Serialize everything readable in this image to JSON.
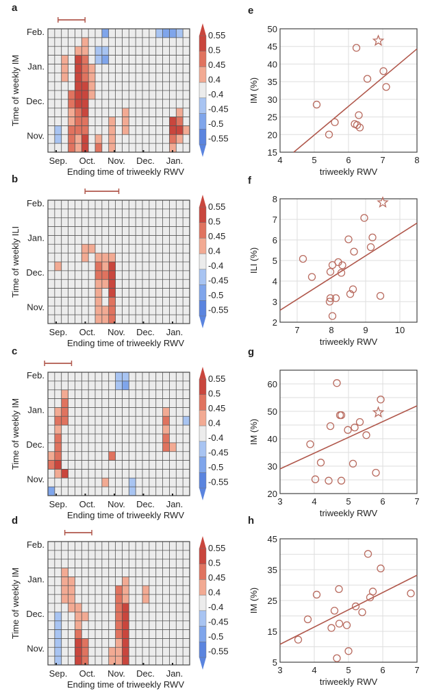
{
  "colors": {
    "pos3": "#c9463d",
    "pos2": "#e0735f",
    "pos1": "#f2aa93",
    "neutral": "#ececec",
    "neg1": "#a8c4f2",
    "neg2": "#7fa5eb",
    "neg3": "#5a84df",
    "grid": "#555555",
    "marker": "#b86a5e",
    "line": "#b0574b"
  },
  "colorbar": {
    "ticks": [
      "0.55",
      "0.5",
      "0.45",
      "0.4",
      "-0.4",
      "-0.45",
      "-0.5",
      "-0.55"
    ]
  },
  "chart_data": [
    {
      "panel": "a",
      "type": "heatmap",
      "xlabel": "Ending time of triweekly RWV",
      "ylabel": "Time of weekly IM",
      "x_ticks": [
        "Sep.",
        "Oct.",
        "Nov.",
        "Dec.",
        "Jan."
      ],
      "y_ticks": [
        "Feb.",
        "Jan.",
        "Dec.",
        "Nov."
      ],
      "n_cols": 21,
      "n_rows": 14,
      "window_bar": [
        1,
        5
      ],
      "cells": [
        [
          0,
          8,
          -0.5
        ],
        [
          0,
          16,
          -0.45
        ],
        [
          0,
          17,
          -0.5
        ],
        [
          0,
          18,
          -0.5
        ],
        [
          0,
          19,
          -0.45
        ],
        [
          1,
          5,
          0.45
        ],
        [
          2,
          4,
          0.45
        ],
        [
          2,
          5,
          0.45
        ],
        [
          2,
          7,
          -0.45
        ],
        [
          2,
          8,
          -0.45
        ],
        [
          3,
          2,
          0.45
        ],
        [
          3,
          4,
          0.55
        ],
        [
          3,
          5,
          0.5
        ],
        [
          3,
          7,
          -0.45
        ],
        [
          3,
          8,
          -0.5
        ],
        [
          4,
          2,
          0.45
        ],
        [
          4,
          4,
          0.55
        ],
        [
          4,
          5,
          0.5
        ],
        [
          4,
          6,
          0.45
        ],
        [
          5,
          2,
          0.45
        ],
        [
          5,
          4,
          0.55
        ],
        [
          5,
          5,
          0.5
        ],
        [
          5,
          6,
          0.45
        ],
        [
          6,
          4,
          0.55
        ],
        [
          6,
          5,
          0.55
        ],
        [
          6,
          6,
          0.45
        ],
        [
          7,
          3,
          0.5
        ],
        [
          7,
          4,
          0.55
        ],
        [
          7,
          5,
          0.55
        ],
        [
          7,
          6,
          0.45
        ],
        [
          8,
          3,
          0.5
        ],
        [
          8,
          4,
          0.55
        ],
        [
          8,
          5,
          0.55
        ],
        [
          9,
          3,
          0.45
        ],
        [
          9,
          4,
          0.5
        ],
        [
          9,
          5,
          0.55
        ],
        [
          9,
          11,
          0.45
        ],
        [
          9,
          19,
          0.45
        ],
        [
          10,
          3,
          0.45
        ],
        [
          10,
          4,
          0.5
        ],
        [
          10,
          5,
          0.5
        ],
        [
          10,
          9,
          0.45
        ],
        [
          10,
          11,
          0.45
        ],
        [
          10,
          18,
          0.55
        ],
        [
          10,
          19,
          0.5
        ],
        [
          11,
          1,
          -0.45
        ],
        [
          11,
          3,
          0.5
        ],
        [
          11,
          4,
          0.5
        ],
        [
          11,
          5,
          0.5
        ],
        [
          11,
          9,
          0.45
        ],
        [
          11,
          11,
          0.45
        ],
        [
          11,
          18,
          0.55
        ],
        [
          11,
          19,
          0.55
        ],
        [
          11,
          20,
          0.45
        ],
        [
          12,
          1,
          -0.45
        ],
        [
          12,
          3,
          0.5
        ],
        [
          12,
          4,
          0.45
        ],
        [
          12,
          5,
          0.55
        ],
        [
          12,
          7,
          0.45
        ],
        [
          12,
          9,
          0.45
        ],
        [
          12,
          18,
          0.5
        ],
        [
          12,
          19,
          0.45
        ],
        [
          13,
          3,
          0.5
        ],
        [
          13,
          4,
          0.45
        ],
        [
          13,
          5,
          0.55
        ],
        [
          13,
          7,
          0.5
        ],
        [
          13,
          9,
          0.45
        ],
        [
          13,
          18,
          0.45
        ]
      ]
    },
    {
      "panel": "b",
      "type": "heatmap",
      "xlabel": "Ending time of triweekly RWV",
      "ylabel": "Time of weekly ILI",
      "x_ticks": [
        "Sep.",
        "Oct.",
        "Nov.",
        "Dec.",
        "Jan."
      ],
      "y_ticks": [
        "Feb.",
        "Jan.",
        "Dec.",
        "Nov."
      ],
      "n_cols": 21,
      "n_rows": 14,
      "window_bar": [
        5,
        10
      ],
      "cells": [
        [
          5,
          5,
          0.45
        ],
        [
          5,
          6,
          0.45
        ],
        [
          6,
          5,
          0.45
        ],
        [
          6,
          7,
          0.45
        ],
        [
          6,
          8,
          0.45
        ],
        [
          6,
          9,
          0.45
        ],
        [
          7,
          1,
          0.45
        ],
        [
          7,
          7,
          0.5
        ],
        [
          7,
          8,
          0.45
        ],
        [
          7,
          9,
          0.55
        ],
        [
          8,
          7,
          0.5
        ],
        [
          8,
          8,
          0.5
        ],
        [
          8,
          9,
          0.55
        ],
        [
          9,
          7,
          0.45
        ],
        [
          9,
          8,
          0.45
        ],
        [
          9,
          9,
          0.55
        ],
        [
          10,
          7,
          0.45
        ],
        [
          10,
          9,
          0.55
        ],
        [
          11,
          7,
          0.45
        ],
        [
          11,
          9,
          0.5
        ],
        [
          12,
          7,
          0.45
        ],
        [
          12,
          8,
          0.45
        ],
        [
          12,
          9,
          0.5
        ],
        [
          13,
          7,
          0.45
        ],
        [
          13,
          8,
          0.45
        ],
        [
          13,
          9,
          0.5
        ]
      ]
    },
    {
      "panel": "c",
      "type": "heatmap",
      "xlabel": "Ending time of triweekly RWV",
      "ylabel": "Time of weekly IM",
      "x_ticks": [
        "Sep.",
        "Oct.",
        "Nov.",
        "Dec.",
        "Jan."
      ],
      "y_ticks": [
        "Feb.",
        "Jan.",
        "Dec.",
        "Nov."
      ],
      "n_cols": 21,
      "n_rows": 14,
      "window_bar": [
        -1,
        3
      ],
      "cells": [
        [
          0,
          10,
          -0.45
        ],
        [
          0,
          11,
          -0.45
        ],
        [
          1,
          10,
          -0.45
        ],
        [
          1,
          11,
          -0.5
        ],
        [
          2,
          2,
          0.45
        ],
        [
          3,
          2,
          0.5
        ],
        [
          4,
          1,
          0.45
        ],
        [
          4,
          2,
          0.5
        ],
        [
          4,
          17,
          0.45
        ],
        [
          5,
          1,
          0.5
        ],
        [
          5,
          2,
          0.5
        ],
        [
          5,
          17,
          0.5
        ],
        [
          5,
          20,
          -0.45
        ],
        [
          6,
          1,
          0.45
        ],
        [
          6,
          17,
          0.45
        ],
        [
          7,
          1,
          0.5
        ],
        [
          7,
          17,
          0.5
        ],
        [
          8,
          1,
          0.5
        ],
        [
          8,
          17,
          0.5
        ],
        [
          8,
          18,
          0.45
        ],
        [
          9,
          0,
          0.45
        ],
        [
          9,
          1,
          0.5
        ],
        [
          9,
          9,
          0.5
        ],
        [
          10,
          0,
          0.5
        ],
        [
          10,
          1,
          0.55
        ],
        [
          11,
          1,
          0.45
        ],
        [
          11,
          2,
          0.55
        ],
        [
          12,
          8,
          0.45
        ],
        [
          12,
          12,
          -0.45
        ],
        [
          13,
          0,
          -0.5
        ],
        [
          13,
          12,
          -0.45
        ]
      ]
    },
    {
      "panel": "d",
      "type": "heatmap",
      "xlabel": "Ending time of triweekly RWV",
      "ylabel": "Time of weekly IM",
      "x_ticks": [
        "Sep.",
        "Oct.",
        "Nov.",
        "Dec.",
        "Jan."
      ],
      "y_ticks": [
        "Feb.",
        "Jan.",
        "Dec.",
        "Nov."
      ],
      "n_cols": 21,
      "n_rows": 14,
      "window_bar": [
        2,
        6
      ],
      "cells": [
        [
          3,
          2,
          0.45
        ],
        [
          4,
          2,
          0.45
        ],
        [
          4,
          3,
          0.45
        ],
        [
          4,
          11,
          0.45
        ],
        [
          5,
          2,
          0.45
        ],
        [
          5,
          3,
          0.45
        ],
        [
          5,
          10,
          0.5
        ],
        [
          5,
          11,
          0.45
        ],
        [
          5,
          14,
          0.45
        ],
        [
          6,
          2,
          0.45
        ],
        [
          6,
          3,
          0.45
        ],
        [
          6,
          10,
          0.5
        ],
        [
          6,
          11,
          0.45
        ],
        [
          6,
          14,
          0.45
        ],
        [
          7,
          3,
          0.45
        ],
        [
          7,
          4,
          0.45
        ],
        [
          7,
          10,
          0.5
        ],
        [
          7,
          11,
          0.55
        ],
        [
          8,
          1,
          -0.45
        ],
        [
          8,
          4,
          0.45
        ],
        [
          8,
          5,
          0.45
        ],
        [
          8,
          10,
          0.5
        ],
        [
          8,
          11,
          0.55
        ],
        [
          9,
          1,
          -0.45
        ],
        [
          9,
          4,
          0.45
        ],
        [
          9,
          10,
          0.5
        ],
        [
          9,
          11,
          0.55
        ],
        [
          10,
          1,
          -0.45
        ],
        [
          10,
          4,
          0.5
        ],
        [
          10,
          10,
          0.5
        ],
        [
          10,
          11,
          0.55
        ],
        [
          11,
          1,
          -0.45
        ],
        [
          11,
          4,
          0.55
        ],
        [
          11,
          5,
          0.5
        ],
        [
          11,
          10,
          0.45
        ],
        [
          11,
          11,
          0.55
        ],
        [
          12,
          1,
          -0.45
        ],
        [
          12,
          4,
          0.55
        ],
        [
          12,
          5,
          0.5
        ],
        [
          12,
          9,
          0.45
        ],
        [
          12,
          10,
          0.45
        ],
        [
          12,
          11,
          0.55
        ],
        [
          13,
          1,
          -0.45
        ],
        [
          13,
          4,
          0.55
        ],
        [
          13,
          5,
          0.5
        ],
        [
          13,
          9,
          0.45
        ],
        [
          13,
          10,
          0.45
        ],
        [
          13,
          11,
          0.55
        ]
      ]
    },
    {
      "panel": "e",
      "type": "scatter",
      "xlabel": "triweekly RWV",
      "ylabel": "IM (%)",
      "xlim": [
        4,
        8
      ],
      "ylim": [
        15,
        50
      ],
      "x_ticks": [
        4,
        5,
        6,
        7,
        8
      ],
      "y_ticks": [
        15,
        20,
        25,
        30,
        35,
        40,
        45,
        50
      ],
      "points": [
        [
          5.07,
          28.5
        ],
        [
          5.43,
          20
        ],
        [
          5.6,
          23.5
        ],
        [
          6.23,
          44.6
        ],
        [
          6.18,
          23
        ],
        [
          6.25,
          22.7
        ],
        [
          6.33,
          22
        ],
        [
          6.3,
          25.5
        ],
        [
          6.55,
          35.8
        ],
        [
          7.02,
          38
        ],
        [
          7.1,
          33.5
        ]
      ],
      "star": [
        6.87,
        46.6
      ],
      "fit_line": [
        [
          4.4,
          15
        ],
        [
          8,
          44.3
        ]
      ],
      "grid": true
    },
    {
      "panel": "f",
      "type": "scatter",
      "xlabel": "triweekly RWV",
      "ylabel": "ILI (%)",
      "xlim": [
        6.5,
        10.5
      ],
      "ylim": [
        2,
        8
      ],
      "x_ticks": [
        7,
        8,
        9,
        10
      ],
      "y_ticks": [
        2,
        3,
        4,
        5,
        6,
        7,
        8
      ],
      "points": [
        [
          7.17,
          5.08
        ],
        [
          7.43,
          4.2
        ],
        [
          7.97,
          4.45
        ],
        [
          8.03,
          4.78
        ],
        [
          8.2,
          4.92
        ],
        [
          8.32,
          4.77
        ],
        [
          8.29,
          4.4
        ],
        [
          7.95,
          3.0
        ],
        [
          7.97,
          3.17
        ],
        [
          8.13,
          3.17
        ],
        [
          8.03,
          2.3
        ],
        [
          8.5,
          6.03
        ],
        [
          8.55,
          3.37
        ],
        [
          8.63,
          3.6
        ],
        [
          8.66,
          5.43
        ],
        [
          8.96,
          7.07
        ],
        [
          9.15,
          5.65
        ],
        [
          9.2,
          6.12
        ],
        [
          9.43,
          3.28
        ]
      ],
      "star": [
        9.5,
        7.82
      ],
      "fit_line": [
        [
          6.5,
          2.58
        ],
        [
          10.5,
          6.82
        ]
      ],
      "grid": true
    },
    {
      "panel": "g",
      "type": "scatter",
      "xlabel": "triweekly RWV",
      "ylabel": "IM (%)",
      "xlim": [
        3,
        7
      ],
      "ylim": [
        20,
        65
      ],
      "x_ticks": [
        3,
        4,
        5,
        6,
        7
      ],
      "y_ticks": [
        20,
        30,
        40,
        50,
        60
      ],
      "points": [
        [
          3.88,
          38
        ],
        [
          4.03,
          25.2
        ],
        [
          4.19,
          31.3
        ],
        [
          4.42,
          24.7
        ],
        [
          4.47,
          44.6
        ],
        [
          4.66,
          60.3
        ],
        [
          4.75,
          48.6
        ],
        [
          4.79,
          48.6
        ],
        [
          4.79,
          24.7
        ],
        [
          4.98,
          43.2
        ],
        [
          5.13,
          30.9
        ],
        [
          5.18,
          44.1
        ],
        [
          5.33,
          46.1
        ],
        [
          5.52,
          41.3
        ],
        [
          5.8,
          27.6
        ],
        [
          5.94,
          54.3
        ]
      ],
      "star": [
        5.87,
        49.6
      ],
      "fit_line": [
        [
          3,
          29
        ],
        [
          7,
          52
        ]
      ],
      "grid": true
    },
    {
      "panel": "h",
      "type": "scatter",
      "xlabel": "triweekly RWV",
      "ylabel": "IM (%)",
      "xlim": [
        3,
        7
      ],
      "ylim": [
        5,
        45
      ],
      "x_ticks": [
        3,
        4,
        5,
        6,
        7
      ],
      "y_ticks": [
        5,
        15,
        25,
        35,
        45
      ],
      "points": [
        [
          3.53,
          12.3
        ],
        [
          3.81,
          18.9
        ],
        [
          4.07,
          26.9
        ],
        [
          4.5,
          16.1
        ],
        [
          4.59,
          21.7
        ],
        [
          4.72,
          28.7
        ],
        [
          4.73,
          17.5
        ],
        [
          4.95,
          17
        ],
        [
          4.66,
          6.3
        ],
        [
          5.0,
          8.6
        ],
        [
          5.21,
          23.1
        ],
        [
          5.4,
          21.2
        ],
        [
          5.57,
          40.1
        ],
        [
          5.63,
          26
        ],
        [
          5.71,
          27.9
        ],
        [
          5.94,
          35.4
        ],
        [
          6.82,
          27.3
        ]
      ],
      "fit_line": [
        [
          3,
          10.8
        ],
        [
          7,
          33.2
        ]
      ],
      "grid": true
    }
  ]
}
